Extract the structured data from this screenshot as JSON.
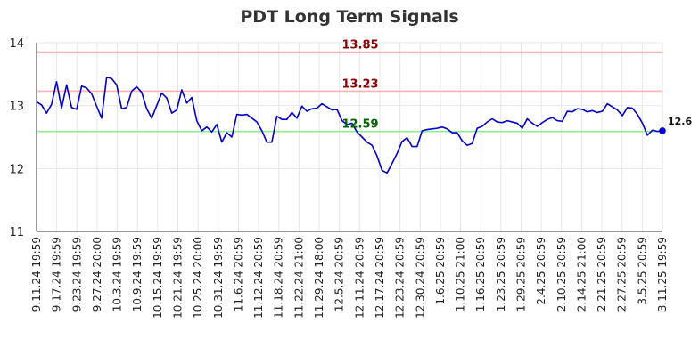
{
  "chart_data": {
    "type": "line",
    "title": "PDT Long Term Signals",
    "xlabel": "",
    "ylabel": "",
    "ylim": [
      11,
      14
    ],
    "yticks": [
      11,
      12,
      13,
      14
    ],
    "grid": true,
    "x_tick_labels": [
      "9.11.24 19:59",
      "9.17.24 19:59",
      "9.23.24 19:59",
      "9.27.24 20:00",
      "10.3.24 19:59",
      "10.9.24 19:59",
      "10.15.24 19:59",
      "10.21.24 19:59",
      "10.25.24 20:00",
      "10.31.24 19:59",
      "11.6.24 20:59",
      "11.12.24 20:59",
      "11.18.24 20:59",
      "11.22.24 21:00",
      "11.29.24 18:00",
      "12.5.24 20:59",
      "12.11.24 20:59",
      "12.17.24 20:59",
      "12.23.24 20:59",
      "12.30.24 20:59",
      "1.6.25 20:59",
      "1.10.25 21:00",
      "1.16.25 20:59",
      "1.23.25 20:59",
      "1.29.25 20:59",
      "2.4.25 20:59",
      "2.10.25 20:59",
      "2.14.25 21:00",
      "2.21.25 20:59",
      "2.27.25 20:59",
      "3.5.25 20:59",
      "3.11.25 19:59"
    ],
    "reference_lines": [
      {
        "value": 13.85,
        "label": "13.85",
        "line_color": "#ffb3b3",
        "label_color": "#8b0000"
      },
      {
        "value": 13.23,
        "label": "13.23",
        "line_color": "#ffb3b3",
        "label_color": "#8b0000"
      },
      {
        "value": 12.59,
        "label": "12.59",
        "line_color": "#90ee90",
        "label_color": "#006400"
      }
    ],
    "last_value_label": "12.6",
    "series": [
      {
        "color": "#0000cc",
        "values": [
          13.06,
          13.01,
          12.88,
          13.02,
          13.38,
          12.96,
          13.33,
          12.97,
          12.94,
          13.31,
          13.28,
          13.19,
          12.99,
          12.8,
          13.45,
          13.43,
          13.33,
          12.95,
          12.97,
          13.23,
          13.3,
          13.21,
          12.95,
          12.8,
          13.0,
          13.2,
          13.12,
          12.88,
          12.93,
          13.25,
          13.04,
          13.13,
          12.76,
          12.6,
          12.66,
          12.58,
          12.7,
          12.42,
          12.57,
          12.5,
          12.86,
          12.85,
          12.86,
          12.8,
          12.74,
          12.6,
          12.42,
          12.42,
          12.83,
          12.78,
          12.78,
          12.89,
          12.8,
          12.99,
          12.91,
          12.95,
          12.96,
          13.03,
          12.98,
          12.93,
          12.94,
          12.76,
          12.7,
          12.72,
          12.58,
          12.5,
          12.42,
          12.37,
          12.2,
          11.97,
          11.93,
          12.08,
          12.24,
          12.43,
          12.49,
          12.35,
          12.35,
          12.6,
          12.62,
          12.63,
          12.64,
          12.66,
          12.63,
          12.57,
          12.57,
          12.44,
          12.37,
          12.4,
          12.64,
          12.67,
          12.74,
          12.79,
          12.74,
          12.73,
          12.76,
          12.74,
          12.72,
          12.64,
          12.79,
          12.72,
          12.67,
          12.73,
          12.78,
          12.81,
          12.76,
          12.75,
          12.91,
          12.9,
          12.95,
          12.94,
          12.9,
          12.92,
          12.89,
          12.91,
          13.03,
          12.98,
          12.93,
          12.84,
          12.97,
          12.96,
          12.86,
          12.72,
          12.53,
          12.61,
          12.59,
          12.6
        ]
      }
    ]
  }
}
